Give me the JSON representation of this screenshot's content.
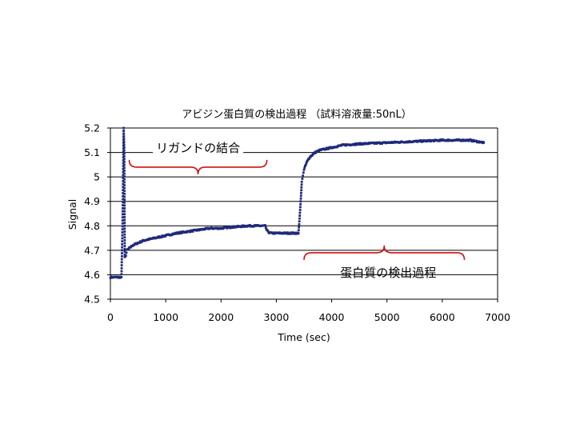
{
  "chart_data": {
    "type": "scatter",
    "title": "アビジン蛋白質の検出過程 （試料溶液量:50nL）",
    "xlabel": "Time (sec)",
    "ylabel": "Signal",
    "xlim": [
      0,
      7000
    ],
    "ylim": [
      4.5,
      5.2
    ],
    "xticks": [
      0,
      1000,
      2000,
      3000,
      4000,
      5000,
      6000,
      7000
    ],
    "yticks": [
      4.5,
      4.6,
      4.7,
      4.8,
      4.9,
      5.0,
      5.1,
      5.2
    ],
    "xtick_labels": [
      "0",
      "1000",
      "2000",
      "3000",
      "4000",
      "5000",
      "6000",
      "7000"
    ],
    "ytick_labels": [
      "4.5",
      "4.6",
      "4.7",
      "4.8",
      "4.9",
      "5",
      "5.1",
      "5.2"
    ],
    "grid": "horizontal",
    "marker_color": "#1f2a7a",
    "annotation_color": "#d01010",
    "series": [
      {
        "x": [
          0,
          100,
          200,
          220,
          230,
          240,
          250,
          260,
          280,
          300,
          400,
          600,
          800,
          1000,
          1200,
          1500,
          1800,
          2000,
          2200,
          2500,
          2800,
          2810,
          2850,
          2900,
          3000,
          3200,
          3400,
          3420,
          3440,
          3460,
          3500,
          3550,
          3600,
          3700,
          3800,
          4000,
          4200,
          4500,
          5000,
          5500,
          6000,
          6500,
          6750
        ],
        "y": [
          4.59,
          4.59,
          4.59,
          4.81,
          5.02,
          5.2,
          5.12,
          4.67,
          4.68,
          4.7,
          4.72,
          4.74,
          4.75,
          4.76,
          4.77,
          4.78,
          4.79,
          4.79,
          4.795,
          4.8,
          4.8,
          4.79,
          4.775,
          4.77,
          4.77,
          4.77,
          4.77,
          4.83,
          4.9,
          4.98,
          5.03,
          5.06,
          5.08,
          5.1,
          5.11,
          5.12,
          5.13,
          5.135,
          5.14,
          5.145,
          5.15,
          5.15,
          5.14
        ]
      }
    ],
    "annotations": [
      {
        "text": "リガンドの結合",
        "brace_x": [
          340,
          2830
        ],
        "brace_y": 5.04
      },
      {
        "text": "蛋白質の検出過程",
        "brace_x": [
          3500,
          6400
        ],
        "brace_y": 4.69
      }
    ]
  }
}
